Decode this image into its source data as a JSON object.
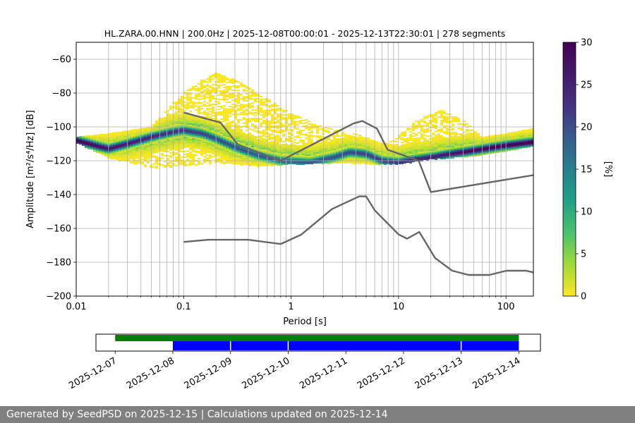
{
  "chart_data": [
    {
      "type": "heatmap",
      "title": "HL.ZARA.00.HNN | 200.0Hz | 2025-12-08T00:00:01 - 2025-12-13T22:30:01 | 278 segments",
      "xlabel": "Period [s]",
      "ylabel": "Amplitude [m²/s⁴/Hz] [dB]",
      "x_scale": "log",
      "xlim": [
        0.01,
        180
      ],
      "ylim": [
        -200,
        -50
      ],
      "xticks": [
        {
          "value": 0.01,
          "label": "0.01"
        },
        {
          "value": 0.1,
          "label": "0.1"
        },
        {
          "value": 1,
          "label": "1"
        },
        {
          "value": 10,
          "label": "10"
        },
        {
          "value": 100,
          "label": "100"
        }
      ],
      "yticks": [
        {
          "value": -60,
          "label": "−60"
        },
        {
          "value": -80,
          "label": "−80"
        },
        {
          "value": -100,
          "label": "−100"
        },
        {
          "value": -120,
          "label": "−120"
        },
        {
          "value": -140,
          "label": "−140"
        },
        {
          "value": -160,
          "label": "−160"
        },
        {
          "value": -180,
          "label": "−180"
        },
        {
          "value": -200,
          "label": "−200"
        }
      ],
      "grid": true,
      "colorbar": {
        "label": "[%]",
        "colormap": "viridis_r",
        "range": [
          0,
          30
        ],
        "ticks": [
          {
            "value": 0,
            "label": "0"
          },
          {
            "value": 5,
            "label": "5"
          },
          {
            "value": 10,
            "label": "10"
          },
          {
            "value": 15,
            "label": "15"
          },
          {
            "value": 20,
            "label": "20"
          },
          {
            "value": 25,
            "label": "25"
          },
          {
            "value": 30,
            "label": "30"
          }
        ]
      },
      "density_band": {
        "mode_curve": [
          [
            0.01,
            -108
          ],
          [
            0.015,
            -111
          ],
          [
            0.02,
            -113
          ],
          [
            0.03,
            -110
          ],
          [
            0.05,
            -106
          ],
          [
            0.08,
            -103
          ],
          [
            0.1,
            -102
          ],
          [
            0.15,
            -104
          ],
          [
            0.2,
            -107
          ],
          [
            0.3,
            -112
          ],
          [
            0.5,
            -117
          ],
          [
            0.8,
            -120
          ],
          [
            1.5,
            -121
          ],
          [
            2.5,
            -118
          ],
          [
            3.5,
            -115
          ],
          [
            5,
            -116
          ],
          [
            7,
            -120
          ],
          [
            10,
            -121
          ],
          [
            15,
            -119
          ],
          [
            20,
            -118
          ],
          [
            30,
            -116
          ],
          [
            50,
            -114
          ],
          [
            100,
            -111
          ],
          [
            180,
            -109
          ]
        ],
        "upper_envelope": [
          [
            0.01,
            -106
          ],
          [
            0.02,
            -104
          ],
          [
            0.05,
            -100
          ],
          [
            0.08,
            -86
          ],
          [
            0.1,
            -80
          ],
          [
            0.15,
            -72
          ],
          [
            0.2,
            -68
          ],
          [
            0.3,
            -72
          ],
          [
            0.5,
            -80
          ],
          [
            1,
            -92
          ],
          [
            2,
            -100
          ],
          [
            4,
            -104
          ],
          [
            8,
            -110
          ],
          [
            15,
            -96
          ],
          [
            25,
            -90
          ],
          [
            40,
            -96
          ],
          [
            60,
            -106
          ],
          [
            100,
            -104
          ],
          [
            180,
            -101
          ]
        ],
        "lower_envelope": [
          [
            0.01,
            -109
          ],
          [
            0.02,
            -118
          ],
          [
            0.05,
            -124
          ],
          [
            0.1,
            -123
          ],
          [
            0.2,
            -121
          ],
          [
            0.5,
            -123
          ],
          [
            1,
            -122
          ],
          [
            3,
            -121
          ],
          [
            6,
            -122
          ],
          [
            10,
            -122
          ],
          [
            20,
            -119
          ],
          [
            50,
            -117
          ],
          [
            100,
            -114
          ],
          [
            180,
            -111
          ]
        ]
      },
      "noise_models": [
        {
          "points": [
            [
              0.1,
              -91.5
            ],
            [
              0.22,
              -97.4
            ],
            [
              0.32,
              -110.5
            ],
            [
              0.8,
              -120
            ],
            [
              3.8,
              -98
            ],
            [
              4.6,
              -96.5
            ],
            [
              6.3,
              -101
            ],
            [
              7.9,
              -113.5
            ],
            [
              15.4,
              -120
            ],
            [
              20,
              -138.5
            ],
            [
              180,
              -128.5
            ]
          ]
        },
        {
          "points": [
            [
              0.1,
              -168
            ],
            [
              0.17,
              -166.7
            ],
            [
              0.4,
              -166.7
            ],
            [
              0.8,
              -169.2
            ],
            [
              1.24,
              -163.7
            ],
            [
              2.4,
              -148.6
            ],
            [
              4.3,
              -141.1
            ],
            [
              5,
              -141.1
            ],
            [
              6,
              -149.3
            ],
            [
              10,
              -163.5
            ],
            [
              12,
              -166.1
            ],
            [
              15.6,
              -162.1
            ],
            [
              21.9,
              -177.5
            ],
            [
              31.6,
              -185
            ],
            [
              45,
              -187.5
            ],
            [
              70,
              -187.5
            ],
            [
              101,
              -185
            ],
            [
              154,
              -185
            ],
            [
              180,
              -186
            ]
          ]
        }
      ]
    },
    {
      "type": "timeline",
      "xlim": [
        "2025-12-06T16:00:00",
        "2025-12-14T09:00:00"
      ],
      "xticks": [
        "2025-12-07",
        "2025-12-08",
        "2025-12-09",
        "2025-12-10",
        "2025-12-11",
        "2025-12-12",
        "2025-12-13",
        "2025-12-14"
      ],
      "series": [
        {
          "color": "#008000",
          "lane": "upper",
          "spans": [
            [
              "2025-12-07T00:00:00",
              "2025-12-14T00:00:00"
            ]
          ]
        },
        {
          "color": "#0000ff",
          "lane": "lower",
          "spans": [
            [
              "2025-12-08T00:00:01",
              "2025-12-14T00:00:00"
            ]
          ]
        }
      ],
      "markers": [
        "2025-12-09T00:00:00",
        "2025-12-10T00:00:00",
        "2025-12-13T00:00:00"
      ]
    }
  ],
  "footer": {
    "text": "Generated by SeedPSD on 2025-12-15 | Calculations updated on 2025-12-14"
  }
}
